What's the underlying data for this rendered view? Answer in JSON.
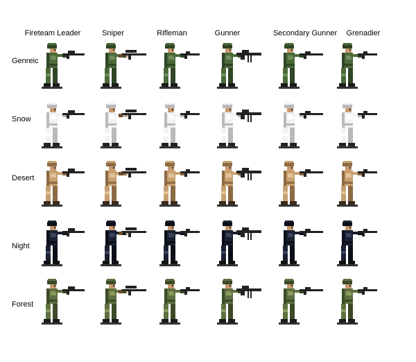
{
  "columns": [
    {
      "label": "Fireteam Leader",
      "weapon": "rifle-scope"
    },
    {
      "label": "Sniper",
      "weapon": "sniper"
    },
    {
      "label": "Rifleman",
      "weapon": "rifle"
    },
    {
      "label": "Gunner",
      "weapon": "lmg"
    },
    {
      "label": "Secondary Gunner",
      "weapon": "rifle-long"
    },
    {
      "label": "Grenadier",
      "weapon": "rifle"
    }
  ],
  "rows": [
    {
      "label": "Genreic",
      "palette": {
        "main": "#4a6a3a",
        "shade": "#2f4526",
        "light": "#6f8c5a",
        "boots": "#1b1b1b",
        "skin": "#c99a70"
      }
    },
    {
      "label": "Snow",
      "palette": {
        "main": "#f2f2f2",
        "shade": "#b9b9b9",
        "light": "#ffffff",
        "boots": "#222222",
        "skin": "#c99a70"
      }
    },
    {
      "label": "Desert",
      "palette": {
        "main": "#c8a070",
        "shade": "#8c6a44",
        "light": "#e0c39a",
        "boots": "#3a2a1a",
        "skin": "#c99a70"
      }
    },
    {
      "label": "Night",
      "palette": {
        "main": "#1a2030",
        "shade": "#0b0f18",
        "light": "#3a4460",
        "boots": "#111111",
        "skin": "#c99a70"
      }
    },
    {
      "label": "Forest",
      "palette": {
        "main": "#5e7040",
        "shade": "#3b4a27",
        "light": "#8a9a5c",
        "boots": "#1b1b1b",
        "skin": "#c99a70"
      }
    }
  ]
}
